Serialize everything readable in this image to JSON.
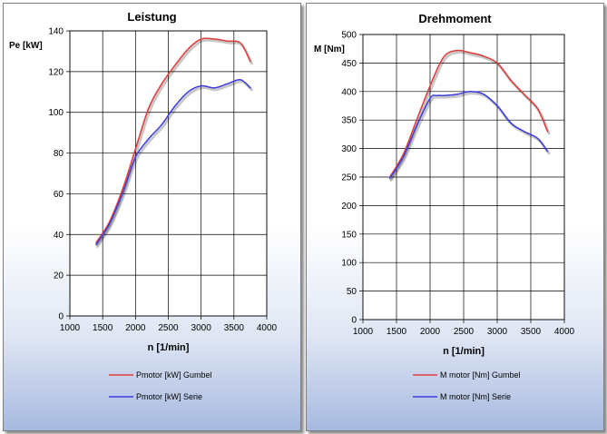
{
  "chart_data": [
    {
      "type": "line",
      "title": "Leistung",
      "xlabel": "n [1/min]",
      "ylabel": "Pe [kW]",
      "xlim": [
        1000,
        4000
      ],
      "ylim": [
        0,
        140
      ],
      "xticks": [
        1000,
        1500,
        2000,
        2500,
        3000,
        3500,
        4000
      ],
      "yticks": [
        0,
        20,
        40,
        60,
        80,
        100,
        120,
        140
      ],
      "grid": true,
      "legend_position": "bottom",
      "series": [
        {
          "name": "Pmotor [kW] Gumbel",
          "color": "#e03c3c",
          "x": [
            1400,
            1600,
            1800,
            2000,
            2200,
            2400,
            2600,
            2800,
            3000,
            3200,
            3400,
            3600,
            3750
          ],
          "y": [
            36,
            46,
            62,
            82,
            102,
            114,
            123,
            131,
            136,
            136,
            135,
            134,
            125
          ]
        },
        {
          "name": "Pmotor [kW] Serie",
          "color": "#3c3ce0",
          "x": [
            1400,
            1600,
            1800,
            2000,
            2200,
            2400,
            2600,
            2800,
            3000,
            3200,
            3400,
            3600,
            3750
          ],
          "y": [
            35,
            45,
            60,
            78,
            87,
            94,
            103,
            110,
            113,
            112,
            114,
            116,
            112
          ]
        }
      ]
    },
    {
      "type": "line",
      "title": "Drehmoment",
      "xlabel": "n [1/min]",
      "ylabel": "M [Nm]",
      "xlim": [
        1000,
        4000
      ],
      "ylim": [
        0,
        500
      ],
      "xticks": [
        1000,
        1500,
        2000,
        2500,
        3000,
        3500,
        4000
      ],
      "yticks": [
        0,
        50,
        100,
        150,
        200,
        250,
        300,
        350,
        400,
        450,
        500
      ],
      "grid": true,
      "legend_position": "bottom",
      "series": [
        {
          "name": "M motor [Nm] Gumbel",
          "color": "#e03c3c",
          "x": [
            1400,
            1600,
            1800,
            2000,
            2200,
            2400,
            2600,
            2800,
            3000,
            3200,
            3400,
            3600,
            3750
          ],
          "y": [
            250,
            290,
            350,
            410,
            460,
            472,
            468,
            462,
            450,
            420,
            395,
            370,
            330
          ]
        },
        {
          "name": "M motor [Nm] Serie",
          "color": "#3c3ce0",
          "x": [
            1400,
            1600,
            1800,
            2000,
            2100,
            2200,
            2400,
            2600,
            2800,
            3000,
            3200,
            3400,
            3600,
            3750
          ],
          "y": [
            248,
            285,
            340,
            388,
            393,
            393,
            395,
            400,
            395,
            375,
            345,
            330,
            318,
            295
          ]
        }
      ]
    }
  ]
}
